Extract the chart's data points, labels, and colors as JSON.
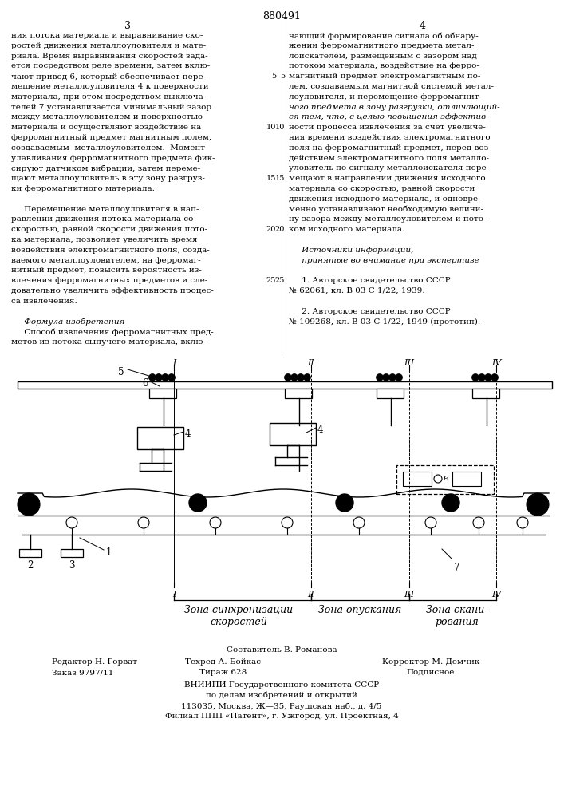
{
  "patent_number": "880491",
  "col_left_num": "3",
  "col_right_num": "4",
  "col_left_text": [
    "ния потока материала и выравнивание ско-",
    "ростей движения металлоуловителя и мате-",
    "риала. Время выравнивания скоростей зада-",
    "ется посредством реле времени, затем вклю-",
    "чают привод 6, который обеспечивает пере-",
    "мещение металлоуловителя 4 к поверхности",
    "материала, при этом посредством выключа-",
    "телей 7 устанавливается минимальный зазор",
    "между металлоуловителем и поверхностью",
    "материала и осуществляют воздействие на",
    "ферромагнитный предмет магнитным полем,",
    "создаваемым  металлоуловителем.  Момент",
    "улавливания ферромагнитного предмета фик-",
    "сируют датчиком вибрации, затем переме-",
    "щают металлоуловитель в эту зону разгруз-",
    "ки ферромагнитного материала.",
    "",
    "     Перемещение металлоуловителя в нап-",
    "равлении движения потока материала со",
    "скоростью, равной скорости движения пото-",
    "ка материала, позволяет увеличить время",
    "воздействия электромагнитного поля, созда-",
    "ваемого металлоуловителем, на ферромаг-",
    "нитный предмет, повысить вероятность из-",
    "влечения ферромагнитных предметов и сле-",
    "довательно увеличить эффективность процес-",
    "са извлечения.",
    "",
    "     Формула изобретения",
    "     Способ извлечения ферромагнитных пред-",
    "метов из потока сыпучего материала, вклю-"
  ],
  "col_right_text": [
    "чающий формирование сигнала об обнару-",
    "жении ферромагнитного предмета метал-",
    "лоискателем, размещенным с зазором над",
    "потоком материала, воздействие на ферро-",
    "магнитный предмет электромагнитным по-",
    "лем, создаваемым магнитной системой метал-",
    "лоуловителя, и перемещение ферромагнит-",
    "ного предмета в зону разгрузки, отличающий-",
    "ся тем, что, с целью повышения эффектив-",
    "ности процесса извлечения за счет увеличе-",
    "ния времени воздействия электромагнитного",
    "поля на ферромагнитный предмет, перед воз-",
    "действием электромагнитного поля металло-",
    "уловитель по сигналу металлоискателя пере-",
    "мещают в направлении движения исходного",
    "материала со скоростью, равной скорости",
    "движения исходного материала, и одновре-",
    "менно устанавливают необходимую величи-",
    "ну зазора между металлоуловителем и пото-",
    "ком исходного материала.",
    "",
    "     Источники информации,",
    "     принятые во внимание при экспертизе",
    "",
    "     1. Авторское свидетельство СССР",
    "№ 62061, кл. В 03 С 1/22, 1939.",
    "",
    "     2. Авторское свидетельство СССР",
    "№ 109268, кл. В 03 С 1/22, 1949 (прототип)."
  ],
  "zone_labels": [
    "Зона синхронизации\nскоростей",
    "Зона опускания",
    "Зона скани-\nрования"
  ],
  "bottom_staff_composer": "Составитель В. Романова",
  "bottom_editor": "Редактор Н. Горват",
  "bottom_techred": "Техред А. Бойкас",
  "bottom_corrector": "Корректор М. Демчик",
  "bottom_order": "Заказ 9797/11",
  "bottom_tirazh": "Тираж 628",
  "bottom_podpisnoe": "Подписное",
  "bottom_vniiipi1": "ВНИИПИ Государственного комитета СССР",
  "bottom_vniiipi2": "по делам изобретений и открытий",
  "bottom_vniiipi3": "113035, Москва, Ж—35, Раушская наб., д. 4/5",
  "bottom_vniiipi4": "Филиал ППП «Патент», г. Ужгород, ул. Проектная, 4"
}
